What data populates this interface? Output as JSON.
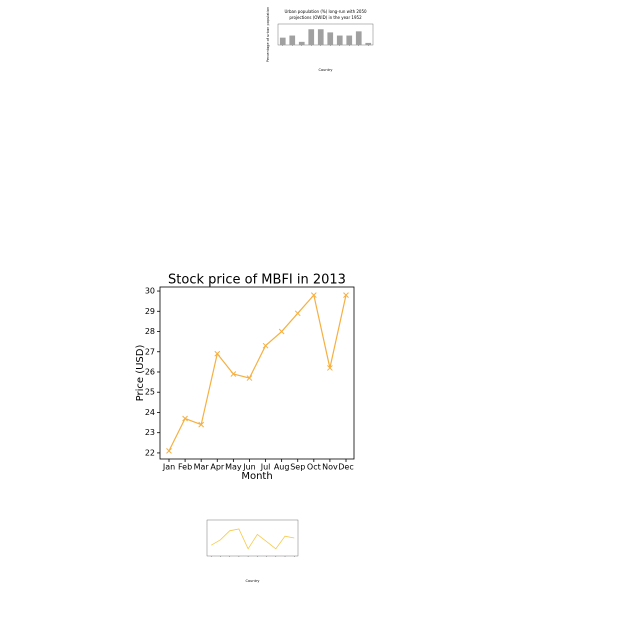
{
  "chart_data": [
    {
      "type": "bar",
      "title": [
        "Urban population (%) long-run with 2050",
        "projections (OWID) in the year 1952"
      ],
      "x_label": "Country",
      "y_label": "Percentage of urban population",
      "categories": [
        null,
        null,
        null,
        null,
        null,
        null,
        null,
        null,
        null,
        null
      ],
      "values": [
        35,
        45,
        15,
        75,
        75,
        60,
        45,
        45,
        65,
        10
      ],
      "color": "#a0a0a0",
      "ylim": [
        0,
        100
      ]
    },
    {
      "type": "line",
      "title": "Stock price of MBFI in 2013",
      "x_label": "Month",
      "y_label": "Price (USD)",
      "categories": [
        "Jan",
        "Feb",
        "Mar",
        "Apr",
        "May",
        "Jun",
        "Jul",
        "Aug",
        "Sep",
        "Oct",
        "Nov",
        "Dec"
      ],
      "values": [
        22.1,
        23.7,
        23.4,
        26.9,
        25.9,
        25.7,
        27.3,
        28.0,
        28.9,
        29.8,
        26.2,
        29.8
      ],
      "color": "#f5b041",
      "marker": "x",
      "ylim": [
        21.7,
        30.2
      ],
      "yticks": [
        22,
        23,
        24,
        25,
        26,
        27,
        28,
        29,
        30
      ]
    },
    {
      "type": "line",
      "x_label": "Country",
      "categories": [
        null,
        null,
        null,
        null,
        null,
        null,
        null,
        null,
        null,
        null
      ],
      "values": [
        3,
        4.5,
        7,
        7.5,
        2,
        6,
        4,
        2,
        5.5,
        5
      ],
      "color": "#f7c948",
      "ylim": [
        0,
        10
      ]
    }
  ]
}
